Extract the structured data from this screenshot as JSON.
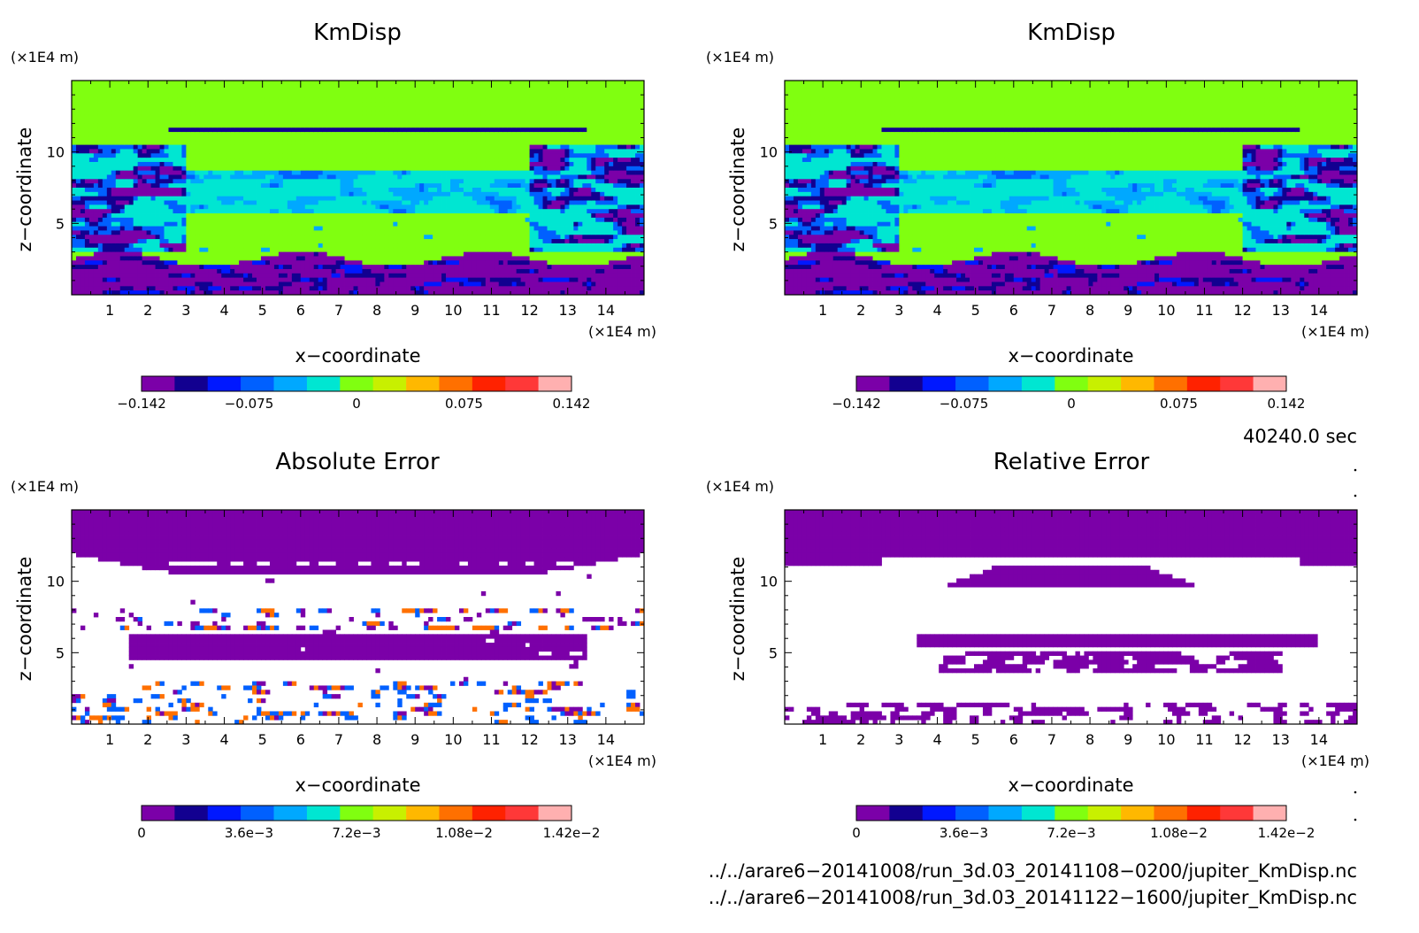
{
  "chart_data": [
    {
      "type": "heatmap",
      "title": "KmDisp",
      "xlabel": "x−coordinate",
      "ylabel": "z−coordinate",
      "x_unit": "(×1E4 m)",
      "y_unit": "(×1E4 m)",
      "x_ticks": [
        "1",
        "2",
        "3",
        "4",
        "5",
        "6",
        "7",
        "8",
        "9",
        "10",
        "11",
        "12",
        "13",
        "14"
      ],
      "y_ticks": [
        "5",
        "10"
      ],
      "xlim": [
        0,
        15
      ],
      "ylim": [
        0,
        15
      ],
      "colorbar": {
        "range": [
          -0.142,
          0.142
        ],
        "tick_labels": [
          "−0.142",
          "−0.075",
          "0",
          "0.075",
          "0.142"
        ],
        "colors": [
          "#7b00a8",
          "#120090",
          "#0018ff",
          "#0060ff",
          "#00a8ff",
          "#00e6d2",
          "#80ff10",
          "#c8f000",
          "#ffb800",
          "#ff7000",
          "#ff2200",
          "#ff3838",
          "#ffb0b0"
        ]
      },
      "field": "kmdisp_a"
    },
    {
      "type": "heatmap",
      "title": "KmDisp",
      "xlabel": "x−coordinate",
      "ylabel": "z−coordinate",
      "x_unit": "(×1E4 m)",
      "y_unit": "(×1E4 m)",
      "x_ticks": [
        "1",
        "2",
        "3",
        "4",
        "5",
        "6",
        "7",
        "8",
        "9",
        "10",
        "11",
        "12",
        "13",
        "14"
      ],
      "y_ticks": [
        "5",
        "10"
      ],
      "xlim": [
        0,
        15
      ],
      "ylim": [
        0,
        15
      ],
      "colorbar": {
        "range": [
          -0.142,
          0.142
        ],
        "tick_labels": [
          "−0.142",
          "−0.075",
          "0",
          "0.075",
          "0.142"
        ],
        "colors": [
          "#7b00a8",
          "#120090",
          "#0018ff",
          "#0060ff",
          "#00a8ff",
          "#00e6d2",
          "#80ff10",
          "#c8f000",
          "#ffb800",
          "#ff7000",
          "#ff2200",
          "#ff3838",
          "#ffb0b0"
        ]
      },
      "field": "kmdisp_b"
    },
    {
      "type": "heatmap",
      "title": "Absolute Error",
      "xlabel": "x−coordinate",
      "ylabel": "z−coordinate",
      "x_unit": "(×1E4 m)",
      "y_unit": "(×1E4 m)",
      "x_ticks": [
        "1",
        "2",
        "3",
        "4",
        "5",
        "6",
        "7",
        "8",
        "9",
        "10",
        "11",
        "12",
        "13",
        "14"
      ],
      "y_ticks": [
        "5",
        "10"
      ],
      "xlim": [
        0,
        15
      ],
      "ylim": [
        0,
        15
      ],
      "colorbar": {
        "range": [
          0,
          0.0142
        ],
        "tick_labels": [
          "0",
          "3.6e−3",
          "7.2e−3",
          "1.08e−2",
          "1.42e−2"
        ],
        "colors": [
          "#7b00a8",
          "#120090",
          "#0018ff",
          "#0060ff",
          "#00a8ff",
          "#00e6d2",
          "#80ff10",
          "#c8f000",
          "#ffb800",
          "#ff7000",
          "#ff2200",
          "#ff3838",
          "#ffb0b0"
        ]
      },
      "field": "abs_error"
    },
    {
      "type": "heatmap",
      "title": "Relative Error",
      "xlabel": "x−coordinate",
      "ylabel": "z−coordinate",
      "x_unit": "(×1E4 m)",
      "y_unit": "(×1E4 m)",
      "x_ticks": [
        "1",
        "2",
        "3",
        "4",
        "5",
        "6",
        "7",
        "8",
        "9",
        "10",
        "11",
        "12",
        "13",
        "14"
      ],
      "y_ticks": [
        "5",
        "10"
      ],
      "xlim": [
        0,
        15
      ],
      "ylim": [
        0,
        15
      ],
      "colorbar": {
        "range": [
          0,
          0.0142
        ],
        "tick_labels": [
          "0",
          "3.6e−3",
          "7.2e−3",
          "1.08e−2",
          "1.42e−2"
        ],
        "colors": [
          "#7b00a8",
          "#120090",
          "#0018ff",
          "#0060ff",
          "#00a8ff",
          "#00e6d2",
          "#80ff10",
          "#c8f000",
          "#ffb800",
          "#ff7000",
          "#ff2200",
          "#ff3838",
          "#ffb0b0"
        ]
      },
      "field": "rel_error"
    }
  ],
  "time_label": "40240.0 sec",
  "files": [
    "../../arare6−20141008/run_3d.03_20141108−0200/jupiter_KmDisp.nc",
    "../../arare6−20141008/run_3d.03_20141122−1600/jupiter_KmDisp.nc"
  ]
}
